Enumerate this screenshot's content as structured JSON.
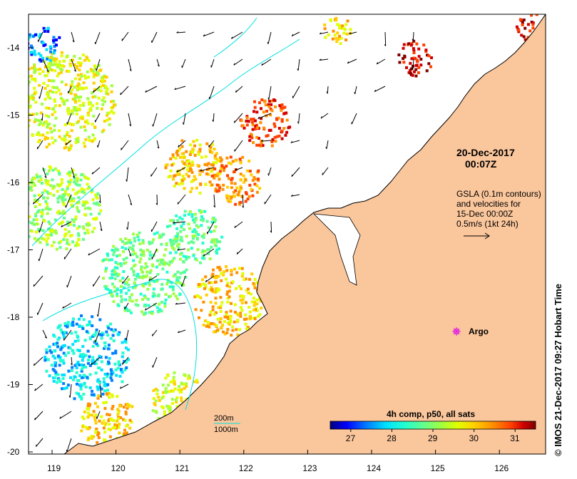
{
  "map": {
    "date": "20-Dec-2017",
    "time": "00:07Z",
    "gsla_lines": [
      "GSLA (0.1m contours)",
      "and velocities for",
      "15-Dec 00:00Z",
      "0.5m/s (1kt 24h)"
    ],
    "argo_label": "Argo",
    "depth_legend": [
      "200m",
      "1000m"
    ],
    "credit": "© IMOS 21-Dec-2017 09:27 Hobart Time",
    "lat_labels": [
      "-14",
      "-15",
      "-16",
      "-17",
      "-18",
      "-19",
      "-20"
    ],
    "lon_labels": [
      "119",
      "120",
      "121",
      "122",
      "123",
      "124",
      "125",
      "126"
    ],
    "land_color": "#fac69c",
    "contour_color": "#00e0e0",
    "argo_color": "#e020e0"
  },
  "colorbar": {
    "title": "4h comp, p50, all sats",
    "tick_labels": [
      "27",
      "28",
      "29",
      "30",
      "31"
    ],
    "value_range": [
      26.5,
      31.5
    ],
    "colors": [
      "#00007f",
      "#0000ff",
      "#0080ff",
      "#00e0ff",
      "#20ffd0",
      "#60ff90",
      "#a0ff40",
      "#e0ff00",
      "#ffd000",
      "#ff9000",
      "#ff4000",
      "#d00000",
      "#800000"
    ]
  }
}
